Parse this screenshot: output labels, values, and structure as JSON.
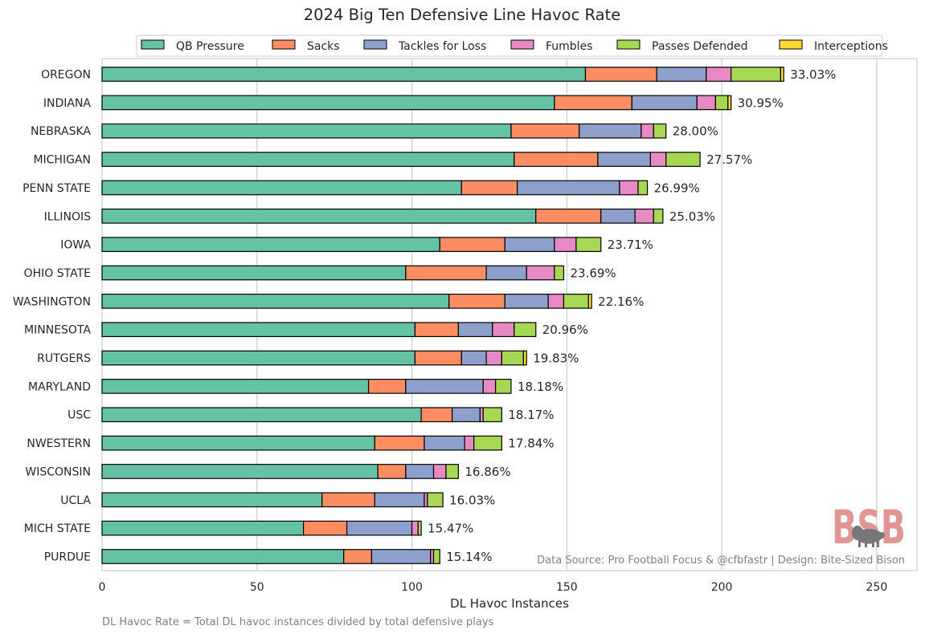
{
  "chart_data": {
    "type": "bar",
    "orientation": "horizontal",
    "stacked": true,
    "title": "2024 Big Ten Defensive Line Havoc Rate",
    "xlabel": "DL Havoc Instances",
    "ylabel": "",
    "xlim": [
      0,
      263
    ],
    "xticks": [
      0,
      50,
      100,
      150,
      200,
      250
    ],
    "grid": "vertical",
    "legend_position": "top",
    "categories": [
      "OREGON",
      "INDIANA",
      "NEBRASKA",
      "MICHIGAN",
      "PENN STATE",
      "ILLINOIS",
      "IOWA",
      "OHIO STATE",
      "WASHINGTON",
      "MINNESOTA",
      "RUTGERS",
      "MARYLAND",
      "USC",
      "NWESTERN",
      "WISCONSIN",
      "UCLA",
      "MICH STATE",
      "PURDUE"
    ],
    "bar_labels": [
      "33.03%",
      "30.95%",
      "28.00%",
      "27.57%",
      "26.99%",
      "25.03%",
      "23.71%",
      "23.69%",
      "22.16%",
      "20.96%",
      "19.83%",
      "18.18%",
      "18.17%",
      "17.84%",
      "16.86%",
      "16.03%",
      "15.47%",
      "15.14%"
    ],
    "series": [
      {
        "name": "QB Pressure",
        "color": "#66c2a5",
        "values": [
          156,
          146,
          132,
          133,
          116,
          140,
          109,
          98,
          112,
          101,
          101,
          86,
          103,
          88,
          89,
          71,
          65,
          78
        ]
      },
      {
        "name": "Sacks",
        "color": "#fc8d62",
        "values": [
          23,
          25,
          22,
          27,
          18,
          21,
          21,
          26,
          18,
          14,
          15,
          12,
          10,
          16,
          9,
          17,
          14,
          9
        ]
      },
      {
        "name": "Tackles for Loss",
        "color": "#8da0cb",
        "values": [
          16,
          21,
          20,
          17,
          33,
          11,
          16,
          13,
          14,
          11,
          8,
          25,
          9,
          13,
          9,
          16,
          21,
          19
        ]
      },
      {
        "name": "Fumbles",
        "color": "#e78ac3",
        "values": [
          8,
          6,
          4,
          5,
          6,
          6,
          7,
          9,
          5,
          7,
          5,
          4,
          1,
          3,
          4,
          1,
          2,
          1
        ]
      },
      {
        "name": "Passes Defended",
        "color": "#a6d854",
        "values": [
          16,
          4,
          4,
          11,
          3,
          3,
          8,
          3,
          8,
          7,
          7,
          5,
          6,
          9,
          4,
          5,
          1,
          2
        ]
      },
      {
        "name": "Interceptions",
        "color": "#ffd92f",
        "values": [
          1,
          1,
          0,
          0,
          0,
          0,
          0,
          0,
          1,
          0,
          1,
          0,
          0,
          0,
          0,
          0,
          0,
          0
        ]
      }
    ],
    "annotations": {
      "source": "Data Source: Pro Football Focus & @cfbfastr | Design: Bite-Sized Bison",
      "footnote": "DL Havoc Rate = Total DL havoc instances divided by total defensive plays",
      "logo_text": "BSB"
    }
  }
}
